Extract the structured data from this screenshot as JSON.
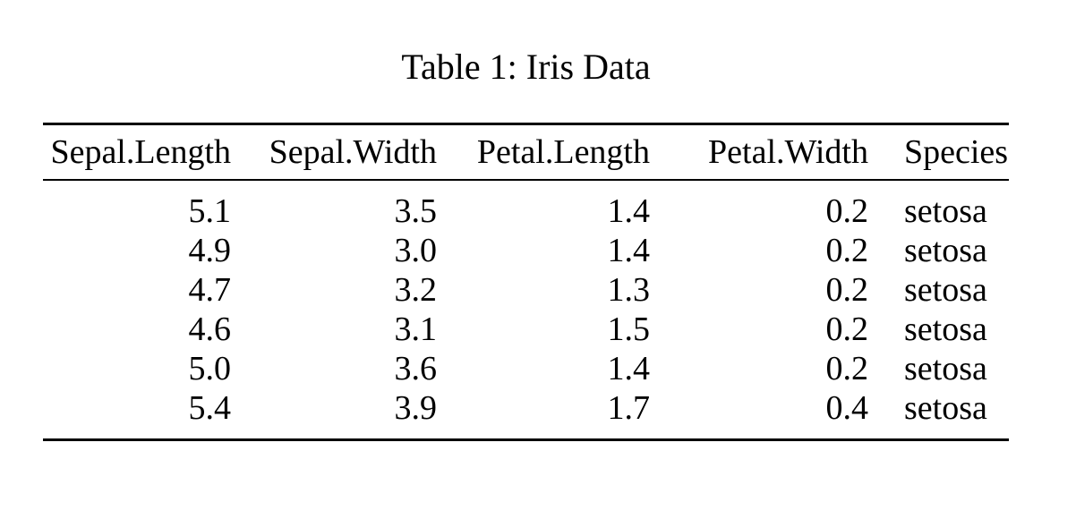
{
  "document": {
    "caption": "Table 1: Iris Data",
    "background": "#ffffff",
    "text_color": "#000000",
    "rule_color": "#000000"
  },
  "table": {
    "columns": [
      {
        "label": "Sepal.Length",
        "align": "right"
      },
      {
        "label": "Sepal.Width",
        "align": "right"
      },
      {
        "label": "Petal.Length",
        "align": "right"
      },
      {
        "label": "Petal.Width",
        "align": "right"
      },
      {
        "label": "Species",
        "align": "left"
      }
    ],
    "rows": [
      [
        "5.1",
        "3.5",
        "1.4",
        "0.2",
        "setosa"
      ],
      [
        "4.9",
        "3.0",
        "1.4",
        "0.2",
        "setosa"
      ],
      [
        "4.7",
        "3.2",
        "1.3",
        "0.2",
        "setosa"
      ],
      [
        "4.6",
        "3.1",
        "1.5",
        "0.2",
        "setosa"
      ],
      [
        "5.0",
        "3.6",
        "1.4",
        "0.2",
        "setosa"
      ],
      [
        "5.4",
        "3.9",
        "1.7",
        "0.4",
        "setosa"
      ]
    ]
  }
}
